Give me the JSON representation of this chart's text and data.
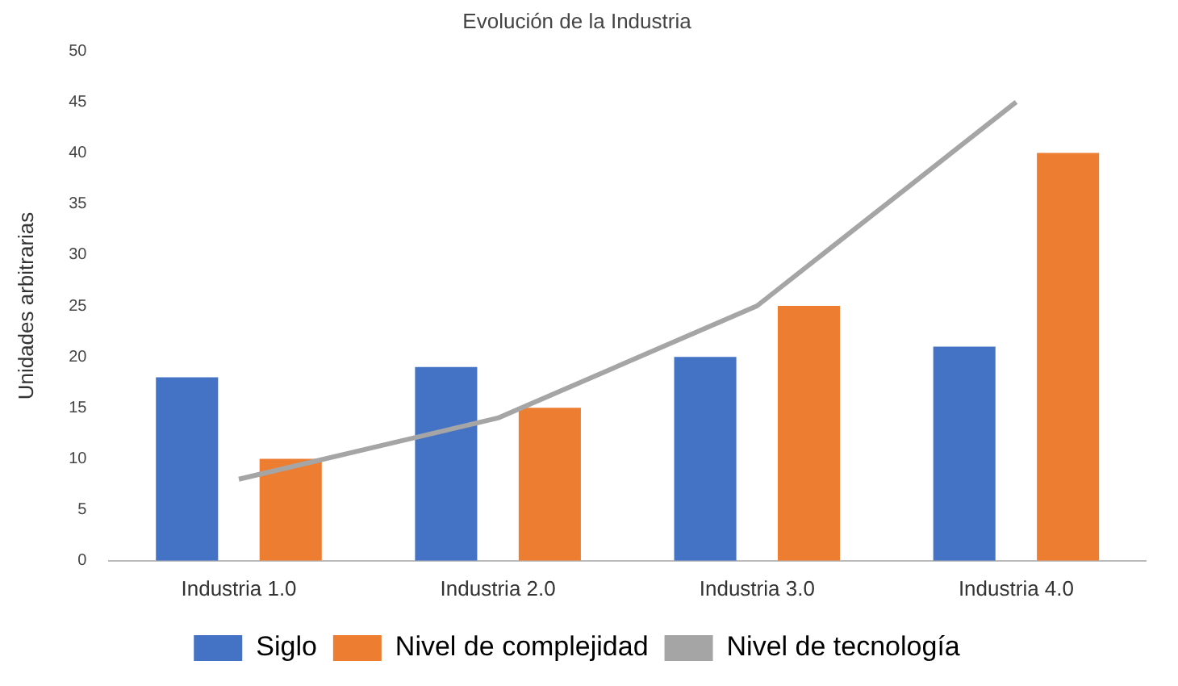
{
  "chart_data": {
    "type": "bar",
    "title": "Evolución de la Industria",
    "ylabel": "Unidades arbitrarias",
    "categories": [
      "Industria 1.0",
      "Industria 2.0",
      "Industria 3.0",
      "Industria 4.0"
    ],
    "series": [
      {
        "name": "Siglo",
        "color": "#4472c4",
        "values": [
          18,
          19,
          20,
          21
        ]
      },
      {
        "name": "Nivel de complejidad",
        "color": "#ed7d31",
        "values": [
          10,
          15,
          25,
          40
        ]
      },
      {
        "name": "Nivel de tecnología",
        "type": "line",
        "color": "#a5a5a5",
        "values": [
          8,
          14,
          25,
          45
        ],
        "marker": "none"
      }
    ],
    "ylim": [
      0,
      50
    ],
    "yticks": [
      0,
      5,
      10,
      15,
      20,
      25,
      30,
      35,
      40,
      45,
      50
    ],
    "grid": false,
    "legend": "bottom"
  }
}
